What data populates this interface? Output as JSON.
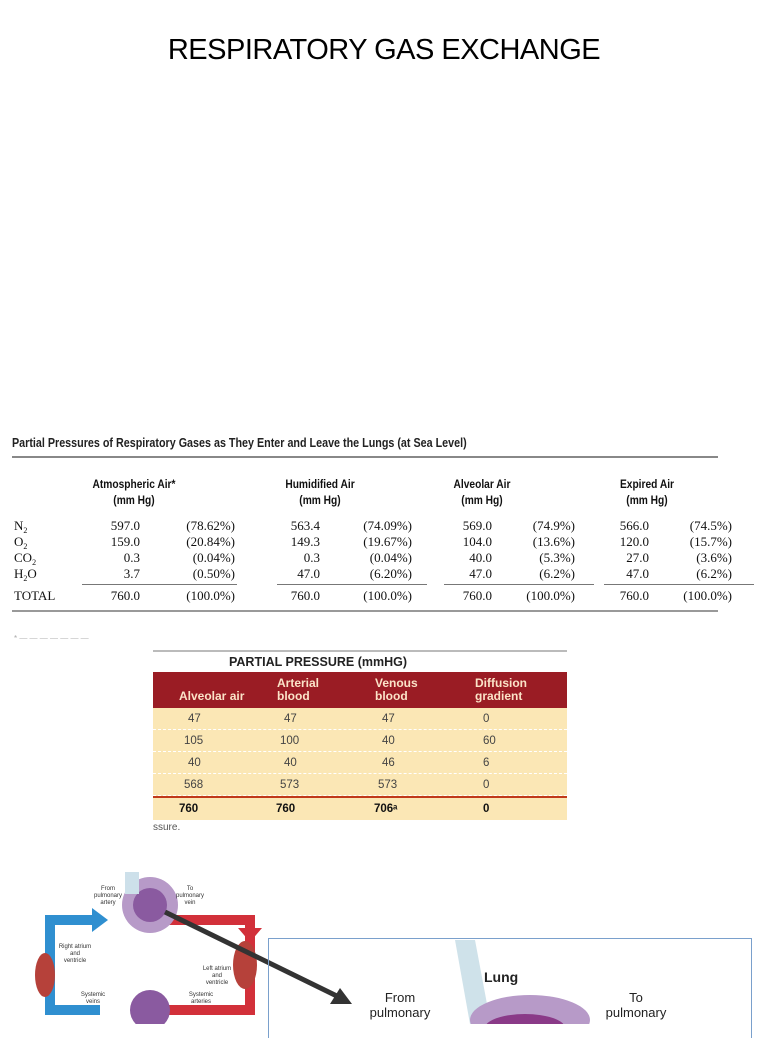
{
  "slide": {
    "title": "RESPIRATORY GAS EXCHANGE"
  },
  "table1": {
    "caption": "Partial Pressures of Respiratory Gases as They Enter and Leave the Lungs (at Sea Level)",
    "columns": [
      {
        "l1": "Atmospheric Air*",
        "l2": "(mm Hg)"
      },
      {
        "l1": "Humidified Air",
        "l2": "(mm Hg)"
      },
      {
        "l1": "Alveolar Air",
        "l2": "(mm Hg)"
      },
      {
        "l1": "Expired Air",
        "l2": "(mm Hg)"
      }
    ],
    "rows": [
      {
        "gas": "N",
        "sub": "2",
        "pre": "",
        "v": [
          "597.0",
          "(78.62%)",
          "563.4",
          "(74.09%)",
          "569.0",
          "(74.9%)",
          "566.0",
          "(74.5%)"
        ]
      },
      {
        "gas": "O",
        "sub": "2",
        "pre": "",
        "v": [
          "159.0",
          "(20.84%)",
          "149.3",
          "(19.67%)",
          "104.0",
          "(13.6%)",
          "120.0",
          "(15.7%)"
        ]
      },
      {
        "gas": "CO",
        "sub": "2",
        "pre": "",
        "v": [
          "0.3",
          "(0.04%)",
          "0.3",
          "(0.04%)",
          "40.0",
          "(5.3%)",
          "27.0",
          "(3.6%)"
        ]
      },
      {
        "gas": "H",
        "sub": "2",
        "pre": "O",
        "v": [
          "3.7",
          "(0.50%)",
          "47.0",
          "(6.20%)",
          "47.0",
          "(6.2%)",
          "47.0",
          "(6.2%)"
        ]
      }
    ],
    "total": {
      "label": "TOTAL",
      "v": [
        "760.0",
        "(100.0%)",
        "760.0",
        "(100.0%)",
        "760.0",
        "(100.0%)",
        "760.0",
        "(100.0%)"
      ]
    }
  },
  "table2": {
    "caption": "PARTIAL PRESSURE (mmHG)",
    "headers": [
      {
        "l1": "",
        "l2": "Alveolar air"
      },
      {
        "l1": "Arterial",
        "l2": "blood"
      },
      {
        "l1": "Venous",
        "l2": "blood"
      },
      {
        "l1": "Diffusion",
        "l2": "gradient"
      }
    ],
    "rows": [
      [
        "47",
        "47",
        "47",
        "0"
      ],
      [
        "105",
        "100",
        "40",
        "60"
      ],
      [
        "40",
        "40",
        "46",
        "6"
      ],
      [
        "568",
        "573",
        "573",
        "0"
      ]
    ],
    "total": [
      "760",
      "760",
      "706ᵃ",
      "0"
    ],
    "footnote": "ssure.",
    "colors": {
      "header": "#9a1c24",
      "body": "#fbe7b5",
      "total_rule": "#c0391b"
    }
  },
  "diagram": {
    "small_labels": {
      "lung": "Lung",
      "from": "From pulmonary artery",
      "to": "To pulmonary vein",
      "right_heart": "Right atrium and ventricle",
      "left_heart": "Left atrium and ventricle",
      "veins": "Systemic veins",
      "arteries": "Systemic arteries"
    },
    "zoom": {
      "lung": "Lung",
      "from1": "From",
      "from2": "pulmonary",
      "to1": "To",
      "to2": "pulmonary"
    },
    "colors": {
      "venous": "#2f8fd0",
      "arterial": "#d2303a",
      "capillary": "#8a5aa0"
    }
  }
}
